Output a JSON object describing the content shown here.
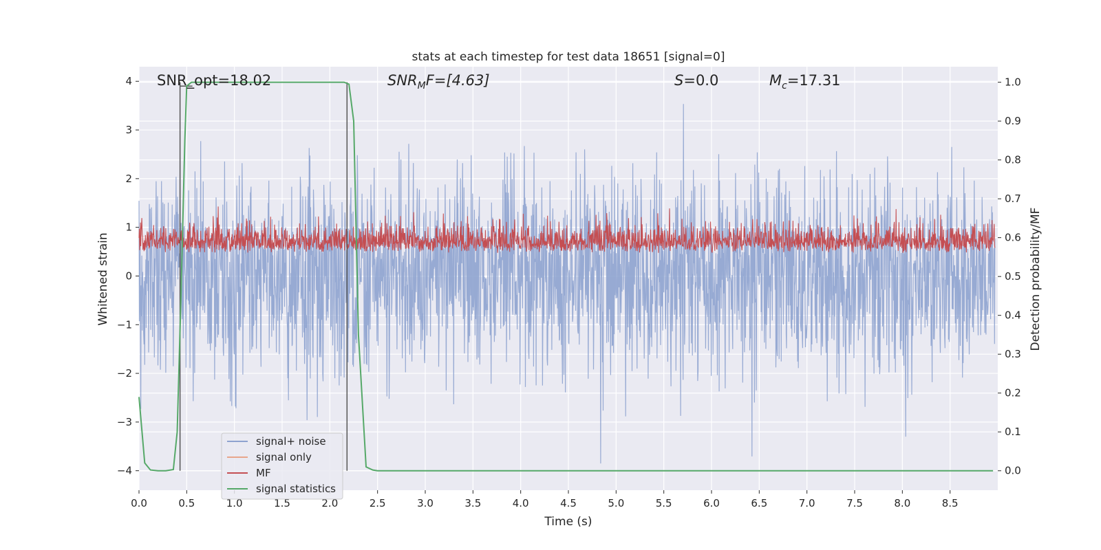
{
  "chart_data": {
    "type": "line",
    "title": "stats at each timestep for test data 18651 [signal=0]",
    "xlabel": "Time (s)",
    "ylabel_left": "Whitened strain",
    "ylabel_right": "Detection probability/MF",
    "xlim": [
      0,
      9.0
    ],
    "ylim_left": [
      -4.4,
      4.3
    ],
    "ylim_right": [
      -0.05,
      1.04
    ],
    "x_ticks": [
      "0.0",
      "0.5",
      "1.0",
      "1.5",
      "2.0",
      "2.5",
      "3.0",
      "3.5",
      "4.0",
      "4.5",
      "5.0",
      "5.5",
      "6.0",
      "6.5",
      "7.0",
      "7.5",
      "8.0",
      "8.5"
    ],
    "y_ticks_left": [
      "4",
      "3",
      "2",
      "1",
      "0",
      "−1",
      "−2",
      "−3",
      "−4"
    ],
    "y_ticks_right": [
      "1.0",
      "0.9",
      "0.8",
      "0.7",
      "0.6",
      "0.5",
      "0.4",
      "0.3",
      "0.2",
      "0.1",
      "0.0"
    ],
    "grid": true,
    "legend_position": "lower-left",
    "annotations": {
      "snr_opt": "SNR_opt=18.02",
      "snr_mf_label": "SNR",
      "snr_mf_sub": "M",
      "snr_mf_rest": "F=[4.63]",
      "s_italic": "S",
      "s_rest": "=0.0",
      "mc_label": "M",
      "mc_sub": "c",
      "mc_rest": "=17.31"
    },
    "series": [
      {
        "name": "signal+ noise",
        "color": "#8ea3cf",
        "axis": "left",
        "description_values": {
          "noise_std": 1.0,
          "peak_max": 3.95,
          "peak_min": -4.1
        }
      },
      {
        "name": "signal only",
        "color": "#e8a58a",
        "axis": "left",
        "values": []
      },
      {
        "name": "MF",
        "color": "#c44e52",
        "axis": "right",
        "description_values": {
          "range": [
            0.5,
            0.68
          ]
        }
      },
      {
        "name": "signal statistics",
        "color": "#55a868",
        "axis": "right",
        "x": [
          0.0,
          0.06,
          0.12,
          0.2,
          0.28,
          0.36,
          0.4,
          0.44,
          0.48,
          0.5,
          0.55,
          1.0,
          1.5,
          2.0,
          2.15,
          2.2,
          2.25,
          2.3,
          2.38,
          2.45,
          2.5,
          3.0,
          4.0,
          5.0,
          6.0,
          7.0,
          8.0,
          8.95
        ],
        "values": [
          0.19,
          0.02,
          0.002,
          0.0,
          0.0,
          0.003,
          0.1,
          0.45,
          0.85,
          0.99,
          1.0,
          1.0,
          1.0,
          1.0,
          1.0,
          0.995,
          0.9,
          0.35,
          0.01,
          0.002,
          0.0,
          0.0,
          0.0,
          0.0,
          0.0,
          0.0,
          0.0,
          0.0
        ]
      }
    ],
    "vertical_markers": [
      0.43,
      2.18
    ]
  }
}
